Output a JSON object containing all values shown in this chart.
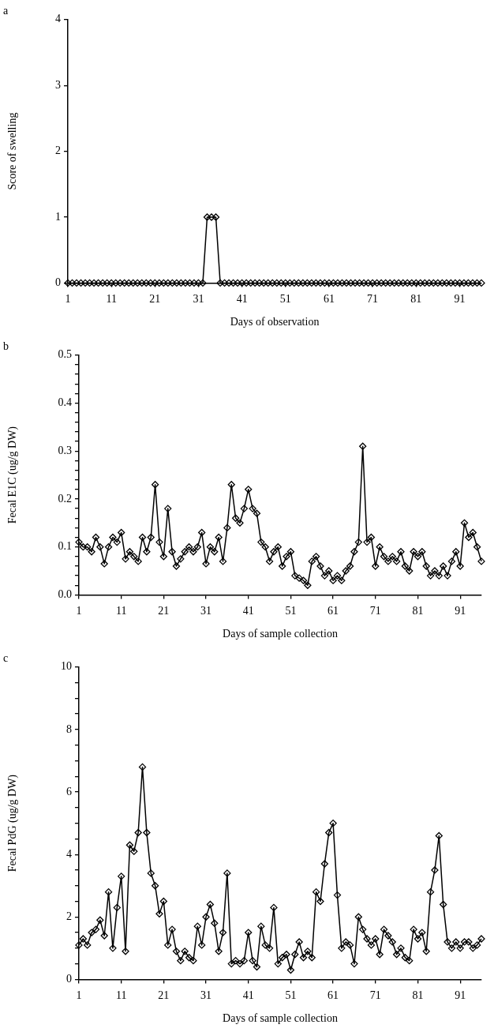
{
  "chart_data": [
    {
      "type": "line",
      "title": "a",
      "xlabel": "Days of observation",
      "ylabel": "Score of swelling",
      "marker": "diamond",
      "legend": false,
      "grid": false,
      "x": [
        1,
        2,
        3,
        4,
        5,
        6,
        7,
        8,
        9,
        10,
        11,
        12,
        13,
        14,
        15,
        16,
        17,
        18,
        19,
        20,
        21,
        22,
        23,
        24,
        25,
        26,
        27,
        28,
        29,
        30,
        31,
        32,
        33,
        34,
        35,
        36,
        37,
        38,
        39,
        40,
        41,
        42,
        43,
        44,
        45,
        46,
        47,
        48,
        49,
        50,
        51,
        52,
        53,
        54,
        55,
        56,
        57,
        58,
        59,
        60,
        61,
        62,
        63,
        64,
        65,
        66,
        67,
        68,
        69,
        70,
        71,
        72,
        73,
        74,
        75,
        76,
        77,
        78,
        79,
        80,
        81,
        82,
        83,
        84,
        85,
        86,
        87,
        88,
        89,
        90,
        91,
        92,
        93,
        94,
        95,
        96
      ],
      "series": [
        {
          "color": "#000000",
          "values": [
            0,
            0,
            0,
            0,
            0,
            0,
            0,
            0,
            0,
            0,
            0,
            0,
            0,
            0,
            0,
            0,
            0,
            0,
            0,
            0,
            0,
            0,
            0,
            0,
            0,
            0,
            0,
            0,
            0,
            0,
            0,
            0,
            1,
            1,
            1,
            0,
            0,
            0,
            0,
            0,
            0,
            0,
            0,
            0,
            0,
            0,
            0,
            0,
            0,
            0,
            0,
            0,
            0,
            0,
            0,
            0,
            0,
            0,
            0,
            0,
            0,
            0,
            0,
            0,
            0,
            0,
            0,
            0,
            0,
            0,
            0,
            0,
            0,
            0,
            0,
            0,
            0,
            0,
            0,
            0,
            0,
            0,
            0,
            0,
            0,
            0,
            0,
            0,
            0,
            0,
            0,
            0,
            0,
            0,
            0,
            0
          ]
        }
      ],
      "xlim": [
        1,
        96
      ],
      "xticks": [
        1,
        11,
        21,
        31,
        41,
        51,
        61,
        71,
        81,
        91
      ],
      "ylim": [
        0,
        4
      ],
      "yticks": [
        0,
        1,
        2,
        3,
        4
      ]
    },
    {
      "type": "line",
      "title": "b",
      "xlabel": "Days of sample collection",
      "ylabel": "Fecal E1C (ug/g DW)",
      "marker": "diamond",
      "legend": false,
      "grid": false,
      "x": [
        1,
        2,
        3,
        4,
        5,
        6,
        7,
        8,
        9,
        10,
        11,
        12,
        13,
        14,
        15,
        16,
        17,
        18,
        19,
        20,
        21,
        22,
        23,
        24,
        25,
        26,
        27,
        28,
        29,
        30,
        31,
        32,
        33,
        34,
        35,
        36,
        37,
        38,
        39,
        40,
        41,
        42,
        43,
        44,
        45,
        46,
        47,
        48,
        49,
        50,
        51,
        52,
        53,
        54,
        55,
        56,
        57,
        58,
        59,
        60,
        61,
        62,
        63,
        64,
        65,
        66,
        67,
        68,
        69,
        70,
        71,
        72,
        73,
        74,
        75,
        76,
        77,
        78,
        79,
        80,
        81,
        82,
        83,
        84,
        85,
        86,
        87,
        88,
        89,
        90,
        91,
        92,
        93,
        94,
        95,
        96
      ],
      "series": [
        {
          "color": "#000000",
          "values": [
            0.11,
            0.1,
            0.1,
            0.09,
            0.12,
            0.1,
            0.065,
            0.1,
            0.12,
            0.11,
            0.13,
            0.075,
            0.09,
            0.08,
            0.07,
            0.12,
            0.09,
            0.12,
            0.23,
            0.11,
            0.08,
            0.18,
            0.09,
            0.06,
            0.075,
            0.09,
            0.1,
            0.09,
            0.1,
            0.13,
            0.065,
            0.1,
            0.09,
            0.12,
            0.07,
            0.14,
            0.23,
            0.16,
            0.15,
            0.18,
            0.22,
            0.18,
            0.17,
            0.11,
            0.1,
            0.07,
            0.09,
            0.1,
            0.06,
            0.08,
            0.09,
            0.04,
            0.035,
            0.03,
            0.02,
            0.07,
            0.08,
            0.06,
            0.04,
            0.05,
            0.03,
            0.04,
            0.03,
            0.05,
            0.06,
            0.09,
            0.11,
            0.31,
            0.11,
            0.12,
            0.06,
            0.1,
            0.08,
            0.07,
            0.08,
            0.07,
            0.09,
            0.06,
            0.05,
            0.09,
            0.08,
            0.09,
            0.06,
            0.04,
            0.05,
            0.04,
            0.06,
            0.04,
            0.07,
            0.09,
            0.06,
            0.15,
            0.12,
            0.13,
            0.1,
            0.07
          ]
        }
      ],
      "xlim": [
        1,
        96
      ],
      "xticks": [
        1,
        11,
        21,
        31,
        41,
        51,
        61,
        71,
        81,
        91
      ],
      "ylim": [
        0,
        0.5
      ],
      "yticks": [
        {
          "value": 0,
          "label": "0.0"
        },
        {
          "value": 0.02,
          "label": null
        },
        {
          "value": 0.04,
          "label": null
        },
        {
          "value": 0.06,
          "label": null
        },
        {
          "value": 0.08,
          "label": null
        },
        {
          "value": 0.1,
          "label": "0.1"
        },
        {
          "value": 0.12,
          "label": null
        },
        {
          "value": 0.14,
          "label": null
        },
        {
          "value": 0.16,
          "label": null
        },
        {
          "value": 0.18,
          "label": null
        },
        {
          "value": 0.2,
          "label": "0.2"
        },
        {
          "value": 0.22,
          "label": null
        },
        {
          "value": 0.24,
          "label": null
        },
        {
          "value": 0.26,
          "label": null
        },
        {
          "value": 0.28,
          "label": null
        },
        {
          "value": 0.3,
          "label": "0.3"
        },
        {
          "value": 0.32,
          "label": null
        },
        {
          "value": 0.34,
          "label": null
        },
        {
          "value": 0.36,
          "label": null
        },
        {
          "value": 0.38,
          "label": null
        },
        {
          "value": 0.4,
          "label": "0.4"
        },
        {
          "value": 0.42,
          "label": null
        },
        {
          "value": 0.44,
          "label": null
        },
        {
          "value": 0.46,
          "label": null
        },
        {
          "value": 0.48,
          "label": null
        },
        {
          "value": 0.5,
          "label": "0.5"
        }
      ]
    },
    {
      "type": "line",
      "title": "c",
      "xlabel": "Days of sample collection",
      "ylabel": "Fecal PdG (ug/g DW)",
      "marker": "diamond",
      "legend": false,
      "grid": false,
      "x": [
        1,
        2,
        3,
        4,
        5,
        6,
        7,
        8,
        9,
        10,
        11,
        12,
        13,
        14,
        15,
        16,
        17,
        18,
        19,
        20,
        21,
        22,
        23,
        24,
        25,
        26,
        27,
        28,
        29,
        30,
        31,
        32,
        33,
        34,
        35,
        36,
        37,
        38,
        39,
        40,
        41,
        42,
        43,
        44,
        45,
        46,
        47,
        48,
        49,
        50,
        51,
        52,
        53,
        54,
        55,
        56,
        57,
        58,
        59,
        60,
        61,
        62,
        63,
        64,
        65,
        66,
        67,
        68,
        69,
        70,
        71,
        72,
        73,
        74,
        75,
        76,
        77,
        78,
        79,
        80,
        81,
        82,
        83,
        84,
        85,
        86,
        87,
        88,
        89,
        90,
        91,
        92,
        93,
        94,
        95,
        96
      ],
      "series": [
        {
          "color": "#000000",
          "values": [
            1.1,
            1.3,
            1.1,
            1.5,
            1.6,
            1.9,
            1.4,
            2.8,
            1.0,
            2.3,
            3.3,
            0.9,
            4.3,
            4.1,
            4.7,
            6.8,
            4.7,
            3.4,
            3.0,
            2.1,
            2.5,
            1.1,
            1.6,
            0.9,
            0.6,
            0.9,
            0.7,
            0.6,
            1.7,
            1.1,
            2.0,
            2.4,
            1.8,
            0.9,
            1.5,
            3.4,
            0.5,
            0.6,
            0.5,
            0.6,
            1.5,
            0.6,
            0.4,
            1.7,
            1.1,
            1.0,
            2.3,
            0.5,
            0.7,
            0.8,
            0.3,
            0.8,
            1.2,
            0.7,
            0.9,
            0.7,
            2.8,
            2.5,
            3.7,
            4.7,
            5.0,
            2.7,
            1.0,
            1.2,
            1.1,
            0.5,
            2.0,
            1.6,
            1.3,
            1.1,
            1.3,
            0.8,
            1.6,
            1.4,
            1.2,
            0.8,
            1.0,
            0.7,
            0.6,
            1.6,
            1.3,
            1.5,
            0.9,
            2.8,
            3.5,
            4.6,
            2.4,
            1.2,
            1.0,
            1.2,
            1.0,
            1.2,
            1.2,
            1.0,
            1.1,
            1.3
          ]
        }
      ],
      "xlim": [
        1,
        96
      ],
      "xticks": [
        1,
        11,
        21,
        31,
        41,
        51,
        61,
        71,
        81,
        91
      ],
      "ylim": [
        0,
        10
      ],
      "yticks": [
        0,
        {
          "value": 0.5,
          "label": null
        },
        {
          "value": 1,
          "label": null
        },
        {
          "value": 1.5,
          "label": null
        },
        2,
        {
          "value": 2.5,
          "label": null
        },
        {
          "value": 3,
          "label": null
        },
        {
          "value": 3.5,
          "label": null
        },
        4,
        {
          "value": 4.5,
          "label": null
        },
        {
          "value": 5,
          "label": null
        },
        {
          "value": 5.5,
          "label": null
        },
        6,
        {
          "value": 6.5,
          "label": null
        },
        {
          "value": 7,
          "label": null
        },
        {
          "value": 7.5,
          "label": null
        },
        8,
        {
          "value": 8.5,
          "label": null
        },
        {
          "value": 9,
          "label": null
        },
        {
          "value": 9.5,
          "label": null
        },
        10
      ]
    }
  ]
}
